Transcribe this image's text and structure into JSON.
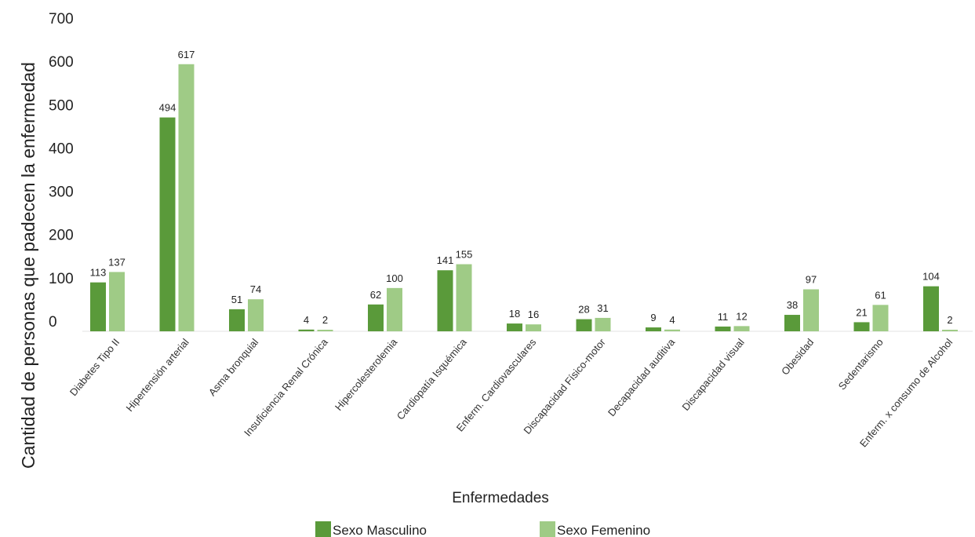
{
  "chart_data": {
    "type": "bar",
    "title": "",
    "xlabel": "Enfermedades",
    "ylabel": "Cantidad de personas que padecen la enfermedad",
    "ylim": [
      0,
      700
    ],
    "yticks": [
      0,
      100,
      200,
      300,
      400,
      500,
      600,
      700
    ],
    "grid": false,
    "legend_position": "bottom",
    "categories": [
      "Diabetes Tipo II",
      "Hipertensión arterial",
      "Asma bronquial",
      "Insuficiencia Renal Crónica",
      "Hipercolesterolemia",
      "Cardiopatía Isquémica",
      "Enferm. Cardiovasculares",
      "Discapacidad Físico-motor",
      "Decapacidad auditiva",
      "Discapacidad visual",
      "Obesidad",
      "Sedentarismo",
      "Enferm. x consumo de Alcohol"
    ],
    "series": [
      {
        "name": "Sexo Masculino",
        "color": "#5a9a3a",
        "values": [
          113,
          494,
          51,
          4,
          62,
          141,
          18,
          28,
          9,
          11,
          38,
          21,
          104
        ]
      },
      {
        "name": "Sexo Femenino",
        "color": "#9fcb86",
        "values": [
          137,
          617,
          74,
          2,
          100,
          155,
          16,
          31,
          4,
          12,
          97,
          61,
          2
        ]
      }
    ]
  }
}
